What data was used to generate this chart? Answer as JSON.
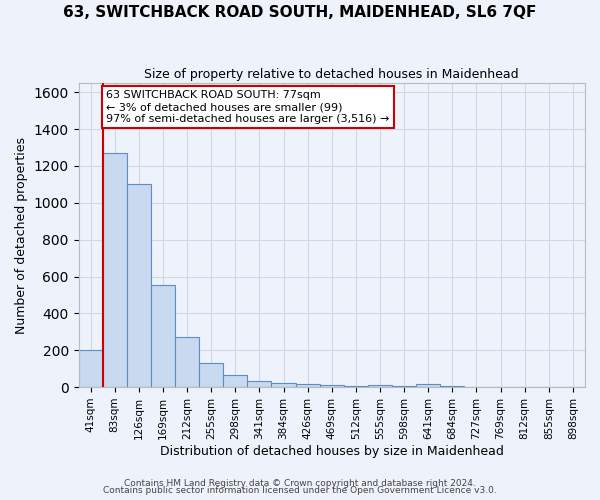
{
  "title": "63, SWITCHBACK ROAD SOUTH, MAIDENHEAD, SL6 7QF",
  "subtitle": "Size of property relative to detached houses in Maidenhead",
  "xlabel": "Distribution of detached houses by size in Maidenhead",
  "ylabel": "Number of detached properties",
  "bar_color": "#c9d9f0",
  "bar_edge_color": "#5b8ec4",
  "grid_color": "#d0d8e8",
  "background_color": "#eef2fa",
  "categories": [
    "41sqm",
    "83sqm",
    "126sqm",
    "169sqm",
    "212sqm",
    "255sqm",
    "298sqm",
    "341sqm",
    "384sqm",
    "426sqm",
    "469sqm",
    "512sqm",
    "555sqm",
    "598sqm",
    "641sqm",
    "684sqm",
    "727sqm",
    "769sqm",
    "812sqm",
    "855sqm",
    "898sqm"
  ],
  "values": [
    200,
    1270,
    1100,
    555,
    270,
    130,
    65,
    35,
    20,
    15,
    10,
    5,
    10,
    5,
    15,
    5,
    2,
    1,
    1,
    1,
    1
  ],
  "ylim": [
    0,
    1650
  ],
  "yticks": [
    0,
    200,
    400,
    600,
    800,
    1000,
    1200,
    1400,
    1600
  ],
  "vline_color": "#cc0000",
  "vline_x_index": 1,
  "annotation_text": "63 SWITCHBACK ROAD SOUTH: 77sqm\n← 3% of detached houses are smaller (99)\n97% of semi-detached houses are larger (3,516) →",
  "annotation_box_color": "#ffffff",
  "annotation_box_edge": "#cc0000",
  "footnote1": "Contains HM Land Registry data © Crown copyright and database right 2024.",
  "footnote2": "Contains public sector information licensed under the Open Government Licence v3.0."
}
